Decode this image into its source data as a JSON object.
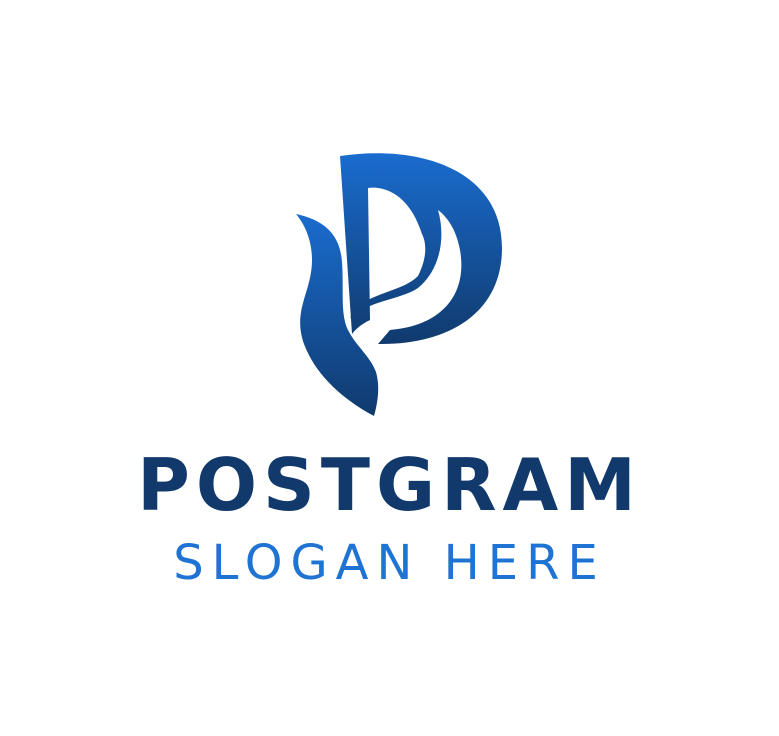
{
  "logo": {
    "brand_name": "POSTGRAM",
    "slogan": "SLOGAN HERE",
    "mark_icon": "stylized-letter-p-flame-icon",
    "colors": {
      "mark_top": "#1a6ccf",
      "mark_bottom": "#103a6d",
      "brand_name": "#12396b",
      "slogan": "#1f73d2",
      "background": "#ffffff"
    }
  }
}
